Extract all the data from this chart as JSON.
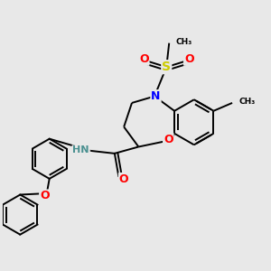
{
  "bg_color": "#e8e8e8",
  "bond_color": "#000000",
  "atom_colors": {
    "N": "#0000ff",
    "O": "#ff0000",
    "S": "#cccc00",
    "C": "#000000",
    "H": "#4a9090",
    "Me": "#000000"
  },
  "font_size": 8,
  "line_width": 1.4,
  "fig_size": [
    3.0,
    3.0
  ],
  "dpi": 100,
  "xlim": [
    0,
    10
  ],
  "ylim": [
    0,
    10
  ]
}
